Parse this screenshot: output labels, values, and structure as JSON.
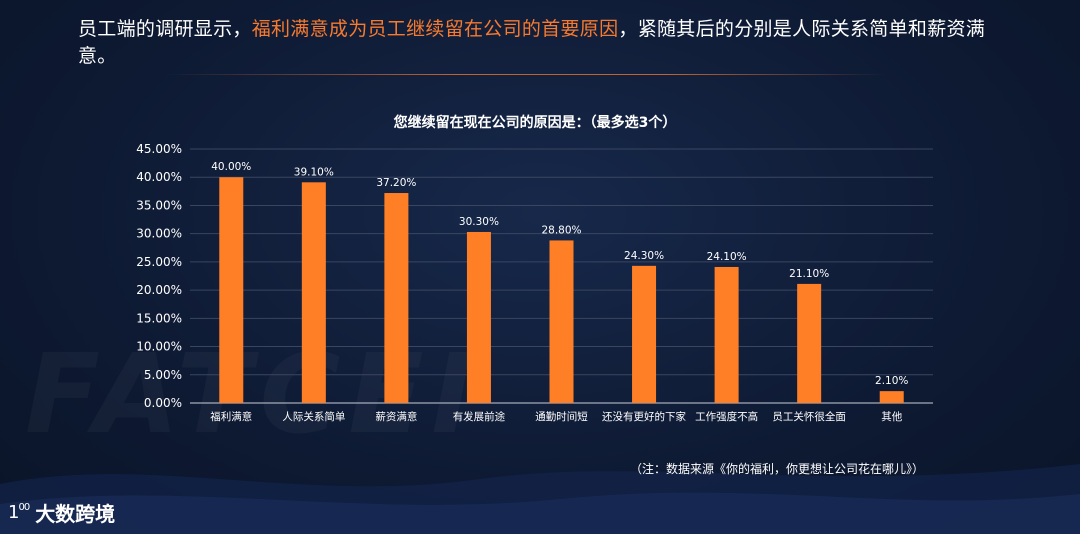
{
  "headline": {
    "prefix": "员工端的调研显示，",
    "highlight": "福利满意成为员工继续留在公司的首要原因",
    "suffix": "，紧随其后的分别是人际关系简单和薪资满意。"
  },
  "watermark": "FATCEI",
  "note": "（注：数据来源《你的福利，你更想让公司花在哪儿》）",
  "brand": {
    "logo": "1",
    "logo_sup": "00",
    "name": "大数跨境"
  },
  "colors": {
    "accent": "#f77a2e",
    "bar": "#ff7f27",
    "text": "#ffffff",
    "grid": "#3a4660"
  },
  "chart_data": {
    "type": "bar",
    "title": "您继续留在现在公司的原因是：（最多选3个）",
    "categories": [
      "福利满意",
      "人际关系简单",
      "薪资满意",
      "有发展前途",
      "通勤时间短",
      "还没有更好的下家",
      "工作强度不高",
      "员工关怀很全面",
      "其他"
    ],
    "values": [
      40.0,
      39.1,
      37.2,
      30.3,
      28.8,
      24.3,
      24.1,
      21.1,
      2.1
    ],
    "value_labels": [
      "40.00%",
      "39.10%",
      "37.20%",
      "30.30%",
      "28.80%",
      "24.30%",
      "24.10%",
      "21.10%",
      "2.10%"
    ],
    "yticks": [
      "0.00%",
      "5.00%",
      "10.00%",
      "15.00%",
      "20.00%",
      "25.00%",
      "30.00%",
      "35.00%",
      "40.00%",
      "45.00%"
    ],
    "ylim": [
      0,
      45
    ],
    "ytick_step": 5,
    "grid": true,
    "xlabel": "",
    "ylabel": ""
  }
}
